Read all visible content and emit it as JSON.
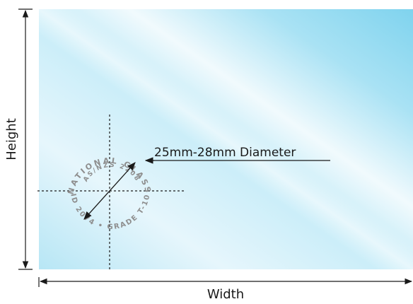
{
  "labels": {
    "height": "Height",
    "width": "Width",
    "diameter": "25mm-28mm Diameter"
  },
  "stamp": {
    "outer_ring": "NATIONAL GLASS",
    "inner_ring": "AS/NZS 2208",
    "bottom_ring": "ID 2074 • GRADE T-10"
  },
  "colors": {
    "glass_light": "#eef8fc",
    "glass_mid": "#bfe8f5",
    "glass_deep": "#86d6ef",
    "line": "#1a1a1a",
    "stamp": "#8e8e8e"
  }
}
